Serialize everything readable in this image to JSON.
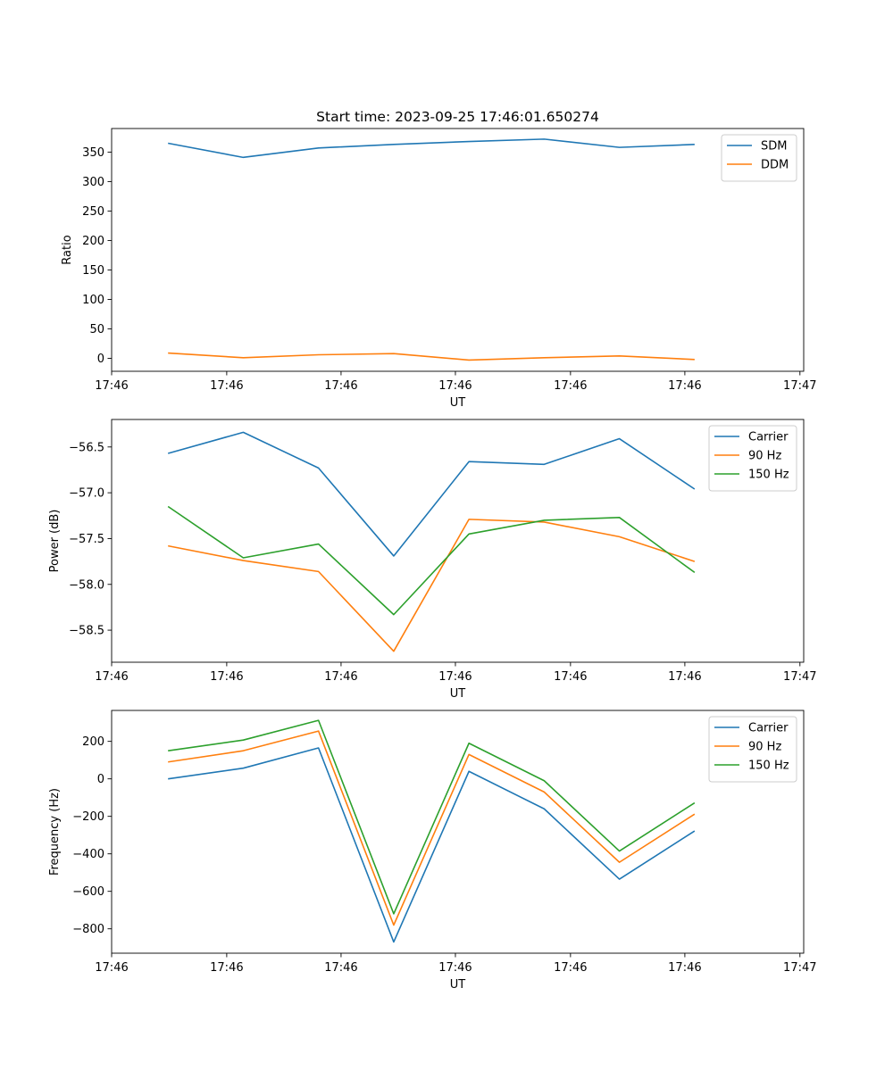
{
  "chart_data": [
    {
      "type": "line",
      "title": "Start time: 2023-09-25 17:46:01.650274",
      "xlabel": "UT",
      "ylabel": "Ratio",
      "x": [
        0,
        1,
        2,
        3,
        4,
        5,
        6,
        7
      ],
      "xlim": [
        -0.75,
        8.45
      ],
      "xticks": [
        -0.75,
        0.78,
        2.3,
        3.82,
        5.35,
        6.87,
        8.4
      ],
      "xtick_labels": [
        "17:46",
        "17:46",
        "17:46",
        "17:46",
        "17:46",
        "17:46",
        "17:47"
      ],
      "ylim": [
        -22,
        390
      ],
      "yticks": [
        0,
        50,
        100,
        150,
        200,
        250,
        300,
        350
      ],
      "ytick_labels": [
        "0",
        "50",
        "100",
        "150",
        "200",
        "250",
        "300",
        "350"
      ],
      "legend": "top-right",
      "series": [
        {
          "name": "SDM",
          "color": "#1f77b4",
          "values": [
            365,
            341,
            357,
            363,
            368,
            372,
            358,
            363
          ]
        },
        {
          "name": "DDM",
          "color": "#ff7f0e",
          "values": [
            9,
            1,
            6,
            8,
            -3,
            1,
            4,
            -2
          ]
        }
      ]
    },
    {
      "type": "line",
      "title": "",
      "xlabel": "UT",
      "ylabel": "Power (dB)",
      "x": [
        0,
        1,
        2,
        3,
        4,
        5,
        6,
        7
      ],
      "xlim": [
        -0.75,
        8.45
      ],
      "xticks": [
        -0.75,
        0.78,
        2.3,
        3.82,
        5.35,
        6.87,
        8.4
      ],
      "xtick_labels": [
        "17:46",
        "17:46",
        "17:46",
        "17:46",
        "17:46",
        "17:46",
        "17:47"
      ],
      "ylim": [
        -58.85,
        -56.2
      ],
      "yticks": [
        -58.5,
        -58.0,
        -57.5,
        -57.0,
        -56.5
      ],
      "ytick_labels": [
        "−58.5",
        "−58.0",
        "−57.5",
        "−57.0",
        "−56.5"
      ],
      "legend": "top-right",
      "series": [
        {
          "name": "Carrier",
          "color": "#1f77b4",
          "values": [
            -56.57,
            -56.34,
            -56.73,
            -57.69,
            -56.66,
            -56.69,
            -56.41,
            -56.96
          ]
        },
        {
          "name": "90 Hz",
          "color": "#ff7f0e",
          "values": [
            -57.58,
            -57.74,
            -57.86,
            -58.73,
            -57.29,
            -57.32,
            -57.48,
            -57.75
          ]
        },
        {
          "name": "150 Hz",
          "color": "#2ca02c",
          "values": [
            -57.15,
            -57.71,
            -57.56,
            -58.33,
            -57.45,
            -57.3,
            -57.27,
            -57.87
          ]
        }
      ]
    },
    {
      "type": "line",
      "title": "",
      "xlabel": "UT",
      "ylabel": "Frequency (Hz)",
      "x": [
        0,
        1,
        2,
        3,
        4,
        5,
        6,
        7
      ],
      "xlim": [
        -0.75,
        8.45
      ],
      "xticks": [
        -0.75,
        0.78,
        2.3,
        3.82,
        5.35,
        6.87,
        8.4
      ],
      "xtick_labels": [
        "17:46",
        "17:46",
        "17:46",
        "17:46",
        "17:46",
        "17:46",
        "17:47"
      ],
      "ylim": [
        -930,
        365
      ],
      "yticks": [
        -800,
        -600,
        -400,
        -200,
        0,
        200
      ],
      "ytick_labels": [
        "−800",
        "−600",
        "−400",
        "−200",
        "0",
        "200"
      ],
      "legend": "top-right",
      "series": [
        {
          "name": "Carrier",
          "color": "#1f77b4",
          "values": [
            0,
            57,
            165,
            -870,
            40,
            -160,
            -535,
            -278
          ]
        },
        {
          "name": "90 Hz",
          "color": "#ff7f0e",
          "values": [
            90,
            150,
            255,
            -780,
            130,
            -70,
            -445,
            -188
          ]
        },
        {
          "name": "150 Hz",
          "color": "#2ca02c",
          "values": [
            150,
            207,
            312,
            -720,
            190,
            -10,
            -385,
            -128
          ]
        }
      ]
    }
  ]
}
